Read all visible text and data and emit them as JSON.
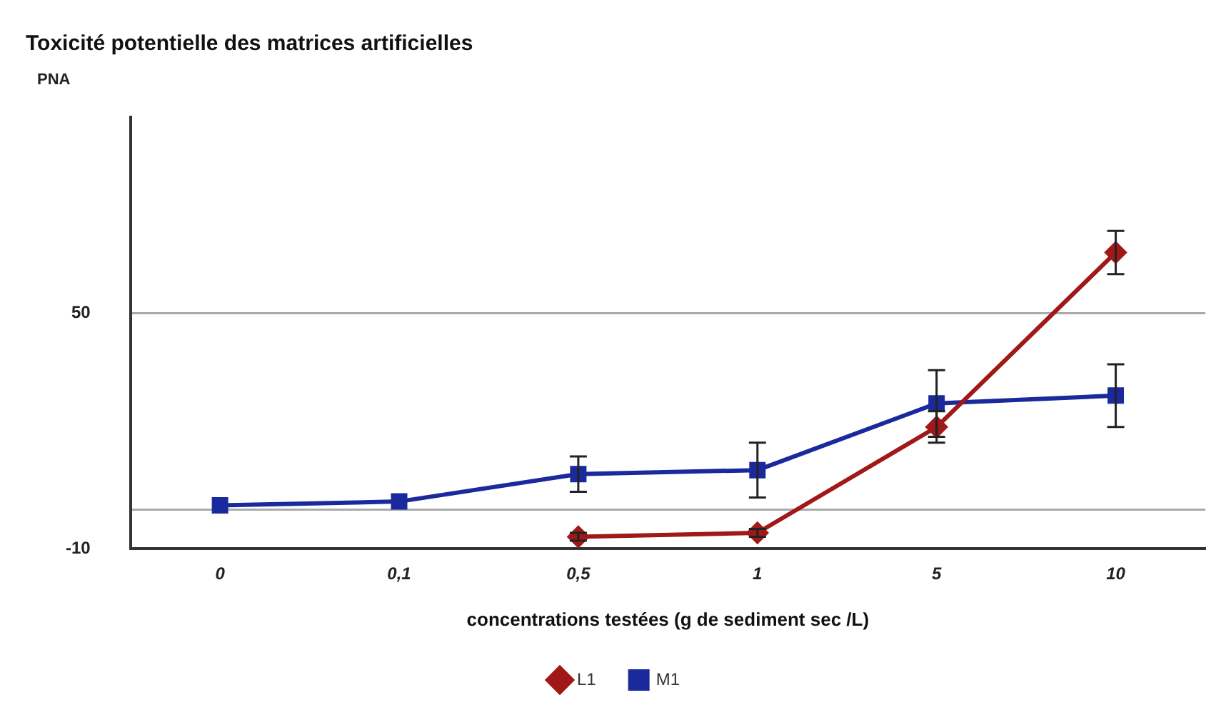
{
  "chart_data": {
    "type": "line",
    "title": "Toxicité potentielle des matrices artificielles",
    "xlabel": "concentrations testées (g de sediment sec /L)",
    "ylabel": "PNA",
    "categories": [
      "0",
      "0,1",
      "0,5",
      "1",
      "5",
      "10"
    ],
    "series": [
      {
        "name": "L1",
        "color": "#a01818",
        "marker": "diamond",
        "values": [
          null,
          null,
          -7,
          -6,
          21,
          65.5
        ],
        "errors": [
          null,
          null,
          1,
          1,
          4,
          5.5
        ]
      },
      {
        "name": "M1",
        "color": "#1a2a9c",
        "marker": "square",
        "values": [
          1,
          2,
          9,
          10,
          27,
          29
        ],
        "errors": [
          null,
          null,
          4.5,
          7,
          8.5,
          8
        ]
      }
    ],
    "ylim": [
      -10,
      100
    ],
    "yticks": [
      -10,
      {
        "value": 0,
        "label": null
      },
      50
    ],
    "grid": "y",
    "legend": "bottom",
    "line_style": "solid"
  }
}
